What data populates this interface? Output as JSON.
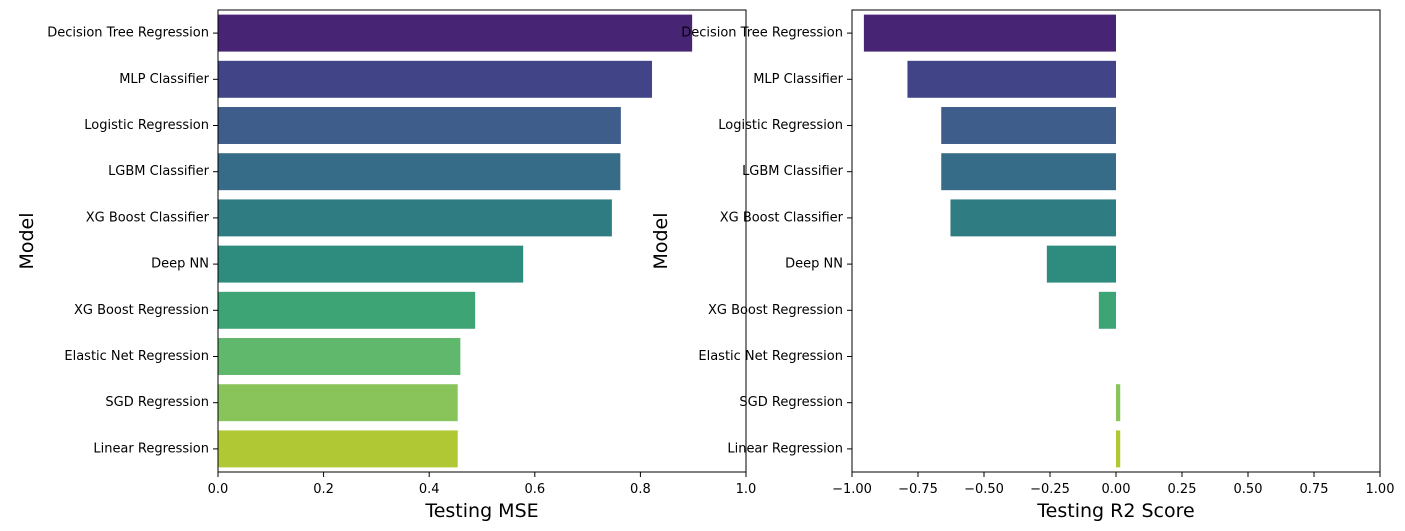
{
  "chart_data": [
    {
      "type": "bar",
      "orientation": "horizontal",
      "categories": [
        "Decision Tree Regression",
        "MLP Classifier",
        "Logistic Regression",
        "LGBM Classifier",
        "XG Boost Classifier",
        "Deep NN",
        "XG Boost Regression",
        "Elastic Net Regression",
        "SGD Regression",
        "Linear Regression"
      ],
      "values": [
        0.898,
        0.822,
        0.763,
        0.762,
        0.746,
        0.578,
        0.487,
        0.459,
        0.454,
        0.454
      ],
      "colors": [
        "#482475",
        "#414487",
        "#3f5d8a",
        "#366c87",
        "#2f7c83",
        "#2e8c7f",
        "#3da475",
        "#5fb86c",
        "#89c45b",
        "#b0c833"
      ],
      "xlabel": "Testing MSE",
      "ylabel": "Model",
      "xlim": [
        0,
        1
      ],
      "xticks": [
        0,
        0.2,
        0.4,
        0.6,
        0.8,
        1
      ],
      "xtick_labels": [
        "0.0",
        "0.2",
        "0.4",
        "0.6",
        "0.8",
        "1.0"
      ],
      "grid": false
    },
    {
      "type": "bar",
      "orientation": "horizontal",
      "categories": [
        "Decision Tree Regression",
        "MLP Classifier",
        "Logistic Regression",
        "LGBM Classifier",
        "XG Boost Classifier",
        "Deep NN",
        "XG Boost Regression",
        "Elastic Net Regression",
        "SGD Regression",
        "Linear Regression"
      ],
      "values": [
        -0.955,
        -0.79,
        -0.662,
        -0.662,
        -0.627,
        -0.262,
        -0.065,
        0.0,
        0.016,
        0.016
      ],
      "colors": [
        "#482475",
        "#414487",
        "#3f5d8a",
        "#366c87",
        "#2f7c83",
        "#2e8c7f",
        "#3da475",
        "#5fb86c",
        "#89c45b",
        "#b0c833"
      ],
      "xlabel": "Testing R2 Score",
      "ylabel": "Model",
      "xlim": [
        -1,
        1
      ],
      "xticks": [
        -1,
        -0.75,
        -0.5,
        -0.25,
        0,
        0.25,
        0.5,
        0.75,
        1
      ],
      "xtick_labels": [
        "−1.00",
        "−0.75",
        "−0.50",
        "−0.25",
        "0.00",
        "0.25",
        "0.50",
        "0.75",
        "1.00"
      ],
      "grid": false
    }
  ]
}
